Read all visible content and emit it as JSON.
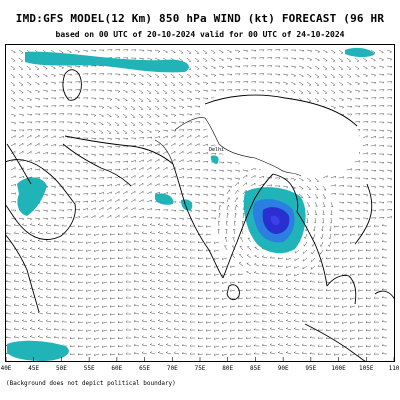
{
  "header": {
    "title": "IMD:GFS MODEL(12 Km) 850 hPa WIND (kt) FORECAST (96 HR",
    "subtitle": "based on 00 UTC of 20-10-2024 valid for 00 UTC of 24-10-2024"
  },
  "map": {
    "longitude_labels": [
      "40E",
      "45E",
      "50E",
      "55E",
      "60E",
      "65E",
      "70E",
      "75E",
      "80E",
      "85E",
      "90E",
      "95E",
      "100E",
      "105E",
      "110"
    ],
    "place_label": "Delhi",
    "colors": {
      "light_wind": "#20b3b8",
      "strong_wind": "#2a7fe0",
      "core_wind": "#2a2fd0",
      "plateau": "#ffffff",
      "barbs": "#222222"
    }
  },
  "footnote": "(Background does not depict political boundary)"
}
